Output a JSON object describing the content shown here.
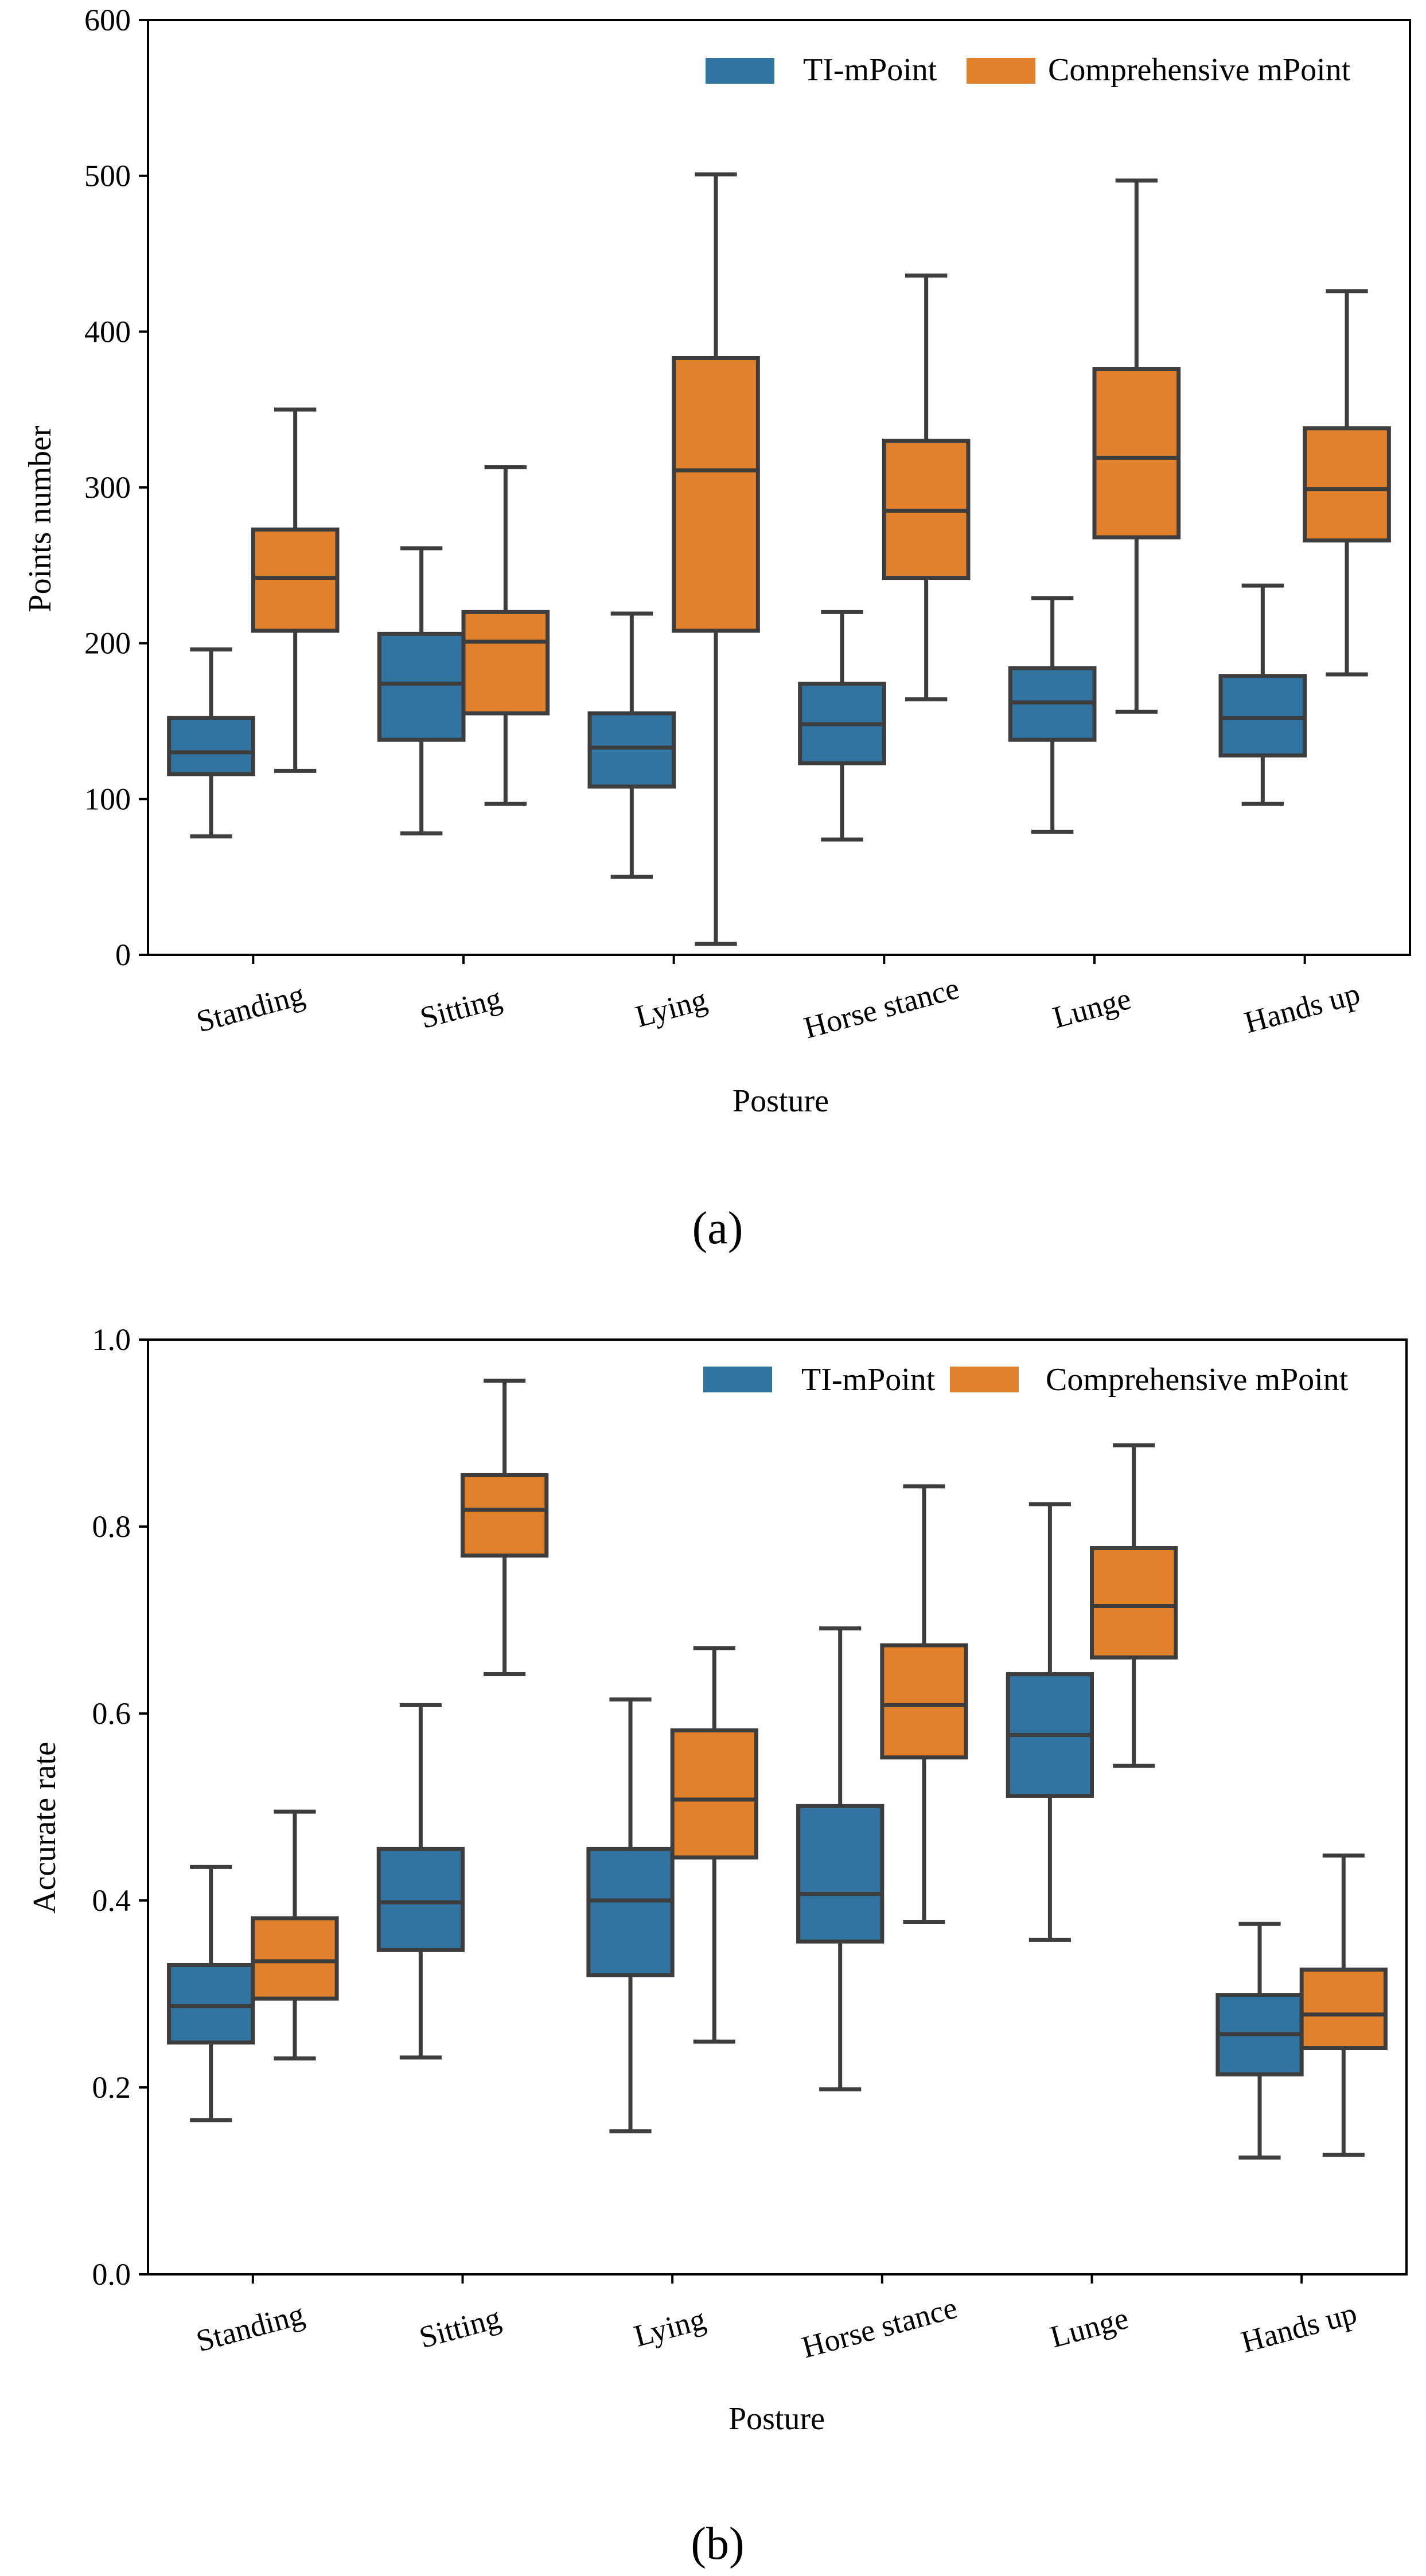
{
  "colors": {
    "ti": "#3274a1",
    "comp": "#e1812c",
    "line": "#3d3d3d"
  },
  "legend": {
    "ti_label": "TI-mPoint",
    "comp_label": "Comprehensive mPoint"
  },
  "chart_data": [
    {
      "type": "box",
      "caption": "(a)",
      "xlabel": "Posture",
      "ylabel": "Points number",
      "ylim": [
        0,
        600
      ],
      "yticks": [
        0,
        100,
        200,
        300,
        400,
        500,
        600
      ],
      "ytick_labels": [
        "0",
        "100",
        "200",
        "300",
        "400",
        "500",
        "600"
      ],
      "categories": [
        "Standing",
        "Sitting",
        "Lying",
        "Horse stance",
        "Lunge",
        "Hands up"
      ],
      "series": [
        {
          "name": "TI-mPoint",
          "boxes": [
            {
              "min": 76,
              "q1": 116,
              "median": 130,
              "q3": 152,
              "max": 196
            },
            {
              "min": 78,
              "q1": 138,
              "median": 174,
              "q3": 206,
              "max": 261
            },
            {
              "min": 50,
              "q1": 108,
              "median": 133,
              "q3": 155,
              "max": 219
            },
            {
              "min": 74,
              "q1": 123,
              "median": 148,
              "q3": 174,
              "max": 220
            },
            {
              "min": 79,
              "q1": 138,
              "median": 162,
              "q3": 184,
              "max": 229
            },
            {
              "min": 97,
              "q1": 128,
              "median": 152,
              "q3": 179,
              "max": 237
            }
          ]
        },
        {
          "name": "Comprehensive mPoint",
          "boxes": [
            {
              "min": 118,
              "q1": 208,
              "median": 242,
              "q3": 273,
              "max": 350
            },
            {
              "min": 97,
              "q1": 155,
              "median": 201,
              "q3": 220,
              "max": 313
            },
            {
              "min": 7,
              "q1": 208,
              "median": 311,
              "q3": 383,
              "max": 501
            },
            {
              "min": 164,
              "q1": 242,
              "median": 285,
              "q3": 330,
              "max": 436
            },
            {
              "min": 156,
              "q1": 268,
              "median": 319,
              "q3": 376,
              "max": 497
            },
            {
              "min": 180,
              "q1": 266,
              "median": 299,
              "q3": 338,
              "max": 426
            }
          ]
        }
      ]
    },
    {
      "type": "box",
      "caption": "(b)",
      "xlabel": "Posture",
      "ylabel": "Accurate rate",
      "ylim": [
        0,
        1.0
      ],
      "yticks": [
        0,
        0.2,
        0.4,
        0.6,
        0.8,
        1.0
      ],
      "ytick_labels": [
        "0.0",
        "0.2",
        "0.4",
        "0.6",
        "0.8",
        "1.0"
      ],
      "categories": [
        "Standing",
        "Sitting",
        "Lying",
        "Horse stance",
        "Lunge",
        "Hands up"
      ],
      "series": [
        {
          "name": "TI-mPoint",
          "boxes": [
            {
              "min": 0.165,
              "q1": 0.248,
              "median": 0.287,
              "q3": 0.331,
              "max": 0.436
            },
            {
              "min": 0.232,
              "q1": 0.347,
              "median": 0.398,
              "q3": 0.455,
              "max": 0.609
            },
            {
              "min": 0.153,
              "q1": 0.32,
              "median": 0.4,
              "q3": 0.455,
              "max": 0.615
            },
            {
              "min": 0.198,
              "q1": 0.356,
              "median": 0.407,
              "q3": 0.501,
              "max": 0.691
            },
            {
              "min": 0.358,
              "q1": 0.512,
              "median": 0.577,
              "q3": 0.642,
              "max": 0.824
            },
            {
              "min": 0.125,
              "q1": 0.214,
              "median": 0.257,
              "q3": 0.299,
              "max": 0.375
            }
          ]
        },
        {
          "name": "Comprehensive mPoint",
          "boxes": [
            {
              "min": 0.231,
              "q1": 0.295,
              "median": 0.335,
              "q3": 0.381,
              "max": 0.495
            },
            {
              "min": 0.642,
              "q1": 0.769,
              "median": 0.818,
              "q3": 0.855,
              "max": 0.956
            },
            {
              "min": 0.249,
              "q1": 0.446,
              "median": 0.508,
              "q3": 0.582,
              "max": 0.67
            },
            {
              "min": 0.377,
              "q1": 0.553,
              "median": 0.609,
              "q3": 0.673,
              "max": 0.843
            },
            {
              "min": 0.544,
              "q1": 0.66,
              "median": 0.715,
              "q3": 0.777,
              "max": 0.887
            },
            {
              "min": 0.128,
              "q1": 0.242,
              "median": 0.278,
              "q3": 0.326,
              "max": 0.448
            }
          ]
        }
      ]
    }
  ]
}
